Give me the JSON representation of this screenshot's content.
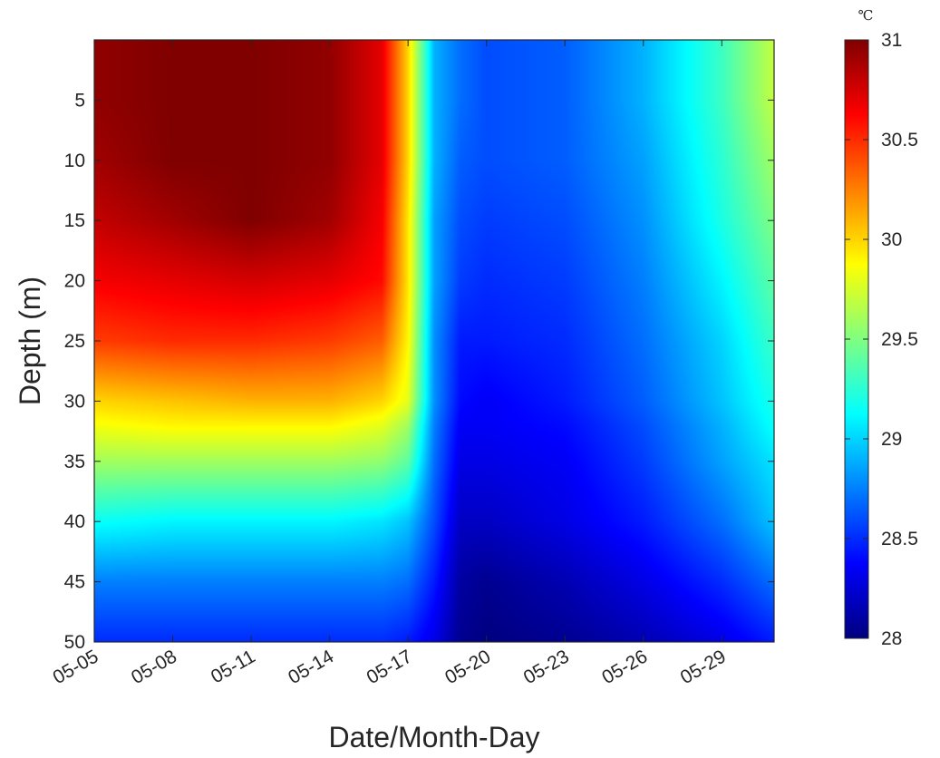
{
  "chart_data": {
    "type": "heatmap",
    "title": "",
    "xlabel": "Date/Month-Day",
    "ylabel": "Depth (m)",
    "colorbar_unit": "℃",
    "colormap": "jet",
    "x_ticks": [
      "05-05",
      "05-08",
      "05-11",
      "05-14",
      "05-17",
      "05-20",
      "05-23",
      "05-26",
      "05-29"
    ],
    "x_tick_days": [
      5,
      8,
      11,
      14,
      17,
      20,
      23,
      26,
      29
    ],
    "x_range_days": [
      5,
      31
    ],
    "y_ticks": [
      "5",
      "10",
      "15",
      "20",
      "25",
      "30",
      "35",
      "40",
      "45",
      "50"
    ],
    "y_tick_values": [
      5,
      10,
      15,
      20,
      25,
      30,
      35,
      40,
      45,
      50
    ],
    "ylim": [
      0,
      50
    ],
    "y_reversed": true,
    "colorbar_ticks": [
      "28",
      "28.5",
      "29",
      "29.5",
      "30",
      "30.5",
      "31"
    ],
    "colorbar_values": [
      28,
      28.5,
      29,
      29.5,
      30,
      30.5,
      31
    ],
    "clim": [
      28,
      31
    ],
    "grid": false,
    "x": [
      5,
      8,
      11,
      14,
      16,
      17,
      18,
      19,
      20,
      23,
      26,
      29,
      31
    ],
    "y": [
      0,
      5,
      10,
      15,
      20,
      25,
      30,
      32,
      35,
      40,
      45,
      50
    ],
    "z": [
      [
        30.95,
        31.0,
        31.0,
        30.95,
        30.7,
        30.0,
        28.9,
        28.7,
        28.6,
        28.65,
        28.9,
        29.3,
        29.7
      ],
      [
        30.95,
        31.0,
        31.0,
        30.95,
        30.7,
        30.0,
        28.9,
        28.7,
        28.6,
        28.65,
        28.9,
        29.3,
        29.7
      ],
      [
        30.9,
        31.0,
        31.0,
        30.95,
        30.7,
        30.0,
        28.9,
        28.65,
        28.6,
        28.65,
        28.85,
        29.25,
        29.6
      ],
      [
        30.8,
        30.9,
        31.0,
        30.9,
        30.65,
        29.95,
        28.85,
        28.6,
        28.55,
        28.6,
        28.8,
        29.2,
        29.5
      ],
      [
        30.65,
        30.7,
        30.75,
        30.7,
        30.6,
        29.95,
        28.85,
        28.55,
        28.5,
        28.55,
        28.75,
        29.1,
        29.4
      ],
      [
        30.45,
        30.5,
        30.5,
        30.45,
        30.35,
        29.9,
        28.8,
        28.45,
        28.45,
        28.5,
        28.7,
        29.0,
        29.3
      ],
      [
        30.0,
        30.05,
        30.1,
        30.1,
        30.0,
        29.8,
        28.8,
        28.4,
        28.35,
        28.45,
        28.65,
        28.95,
        29.2
      ],
      [
        29.85,
        29.9,
        29.9,
        29.9,
        29.8,
        29.6,
        28.75,
        28.35,
        28.35,
        28.4,
        28.6,
        28.9,
        29.15
      ],
      [
        29.6,
        29.6,
        29.6,
        29.6,
        29.55,
        29.4,
        28.7,
        28.3,
        28.3,
        28.35,
        28.55,
        28.85,
        29.05
      ],
      [
        29.15,
        29.1,
        29.1,
        29.1,
        29.05,
        28.95,
        28.6,
        28.2,
        28.2,
        28.3,
        28.45,
        28.7,
        28.95
      ],
      [
        28.75,
        28.75,
        28.75,
        28.75,
        28.75,
        28.7,
        28.45,
        28.1,
        28.05,
        28.15,
        28.3,
        28.5,
        28.7
      ],
      [
        28.5,
        28.5,
        28.5,
        28.5,
        28.5,
        28.45,
        28.3,
        28.05,
        28.0,
        28.05,
        28.15,
        28.3,
        28.45
      ]
    ]
  }
}
